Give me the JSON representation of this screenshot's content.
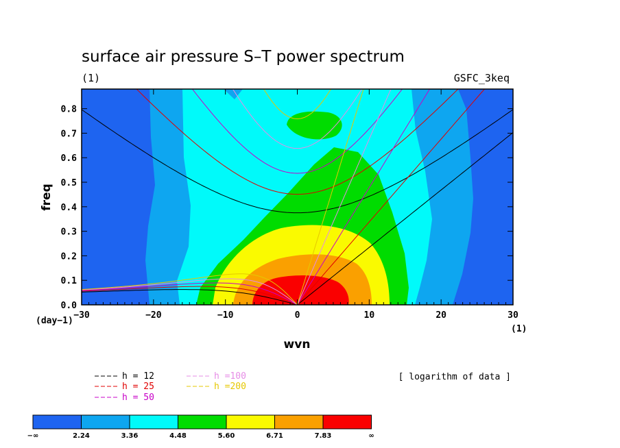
{
  "chart_data": {
    "type": "heatmap",
    "title": "surface air pressure S–T power spectrum",
    "subtitle_left": "(1)",
    "subtitle_right": "GSFC_3keq",
    "xlabel": "wvn",
    "ylabel": "freq",
    "x_unit_label": "(1)",
    "y_unit_label": "(day−1)",
    "xlim": [
      -30,
      30
    ],
    "ylim": [
      0,
      0.88
    ],
    "xticks": [
      "−30",
      "−20",
      "−10",
      "0",
      "10",
      "20",
      "30"
    ],
    "yticks": [
      "0.0",
      "0.1",
      "0.2",
      "0.3",
      "0.4",
      "0.5",
      "0.6",
      "0.7",
      "0.8"
    ],
    "note": "[ logarithm of data ]",
    "levels": [
      "−∞",
      "2.24",
      "3.36",
      "4.48",
      "5.60",
      "6.71",
      "7.83",
      "∞"
    ],
    "level_colors": [
      "#1e64f0",
      "#0ea6f0",
      "#00fafa",
      "#00dc00",
      "#fafa00",
      "#faa000",
      "#fa0000"
    ],
    "dispersion_curves": [
      {
        "label": "h = 12",
        "color": "#000000",
        "h": 12
      },
      {
        "label": "h = 25",
        "color": "#e00000",
        "h": 25
      },
      {
        "label": "h = 50",
        "color": "#c800c8",
        "h": 50
      },
      {
        "label": "h =100",
        "color": "#e68ce6",
        "h": 100
      },
      {
        "label": "h =200",
        "color": "#e6c800",
        "h": 200
      }
    ]
  }
}
